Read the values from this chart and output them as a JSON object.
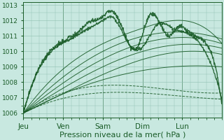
{
  "background_color": "#c8e8e0",
  "grid_color": "#90c0b0",
  "line_color": "#1a5c28",
  "xlabel": "Pression niveau de la mer( hPa )",
  "yticks": [
    1006,
    1007,
    1008,
    1009,
    1010,
    1011,
    1012,
    1013
  ],
  "xtick_labels": [
    "Jeu",
    "Ven",
    "Sam",
    "Dim",
    "Lun"
  ],
  "xtick_positions": [
    0.0,
    0.2,
    0.4,
    0.6,
    0.8
  ],
  "xlim": [
    0,
    1.0
  ],
  "ylim": [
    1005.7,
    1013.2
  ]
}
